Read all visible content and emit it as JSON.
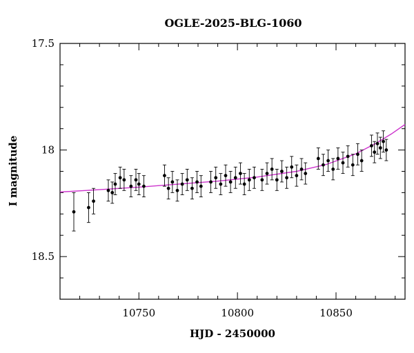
{
  "chart_data": {
    "type": "scatter",
    "title": "OGLE-2025-BLG-1060",
    "xlabel": "HJD - 2450000",
    "ylabel": "I magnitude",
    "xlim": [
      10710,
      10885
    ],
    "ylim": [
      18.7,
      17.5
    ],
    "y_inverted": true,
    "x_ticks": [
      10750,
      10800,
      10850
    ],
    "y_ticks": [
      17.5,
      18,
      18.5
    ],
    "x_tick_labels": [
      "10750",
      "10800",
      "10850"
    ],
    "y_tick_labels": [
      "17.5",
      "18",
      "18.5"
    ],
    "grid": false,
    "colors": {
      "points": "#000000",
      "model": "#cc33cc"
    },
    "series": [
      {
        "type": "scatter_errorbar",
        "x": [
          10717.0,
          10724.5,
          10727.0,
          10734.5,
          10736.5,
          10738.0,
          10740.5,
          10742.5,
          10746.0,
          10748.5,
          10750.0,
          10752.5,
          10763.0,
          10765.0,
          10767.0,
          10769.5,
          10772.0,
          10774.5,
          10777.0,
          10779.5,
          10781.5,
          10786.5,
          10789.0,
          10791.5,
          10794.0,
          10796.5,
          10799.0,
          10801.5,
          10803.5,
          10806.0,
          10808.5,
          10812.5,
          10815.0,
          10817.5,
          10820.0,
          10822.5,
          10825.0,
          10827.5,
          10830.0,
          10832.5,
          10834.5,
          10841.0,
          10843.5,
          10846.0,
          10848.5,
          10851.0,
          10853.5,
          10856.0,
          10858.5,
          10861.0,
          10863.0,
          10868.0,
          10869.5,
          10871.0,
          10872.5,
          10874.0,
          10875.5
        ],
        "y": [
          18.29,
          18.27,
          18.24,
          18.19,
          18.2,
          18.16,
          18.13,
          18.14,
          18.17,
          18.14,
          18.16,
          18.17,
          18.12,
          18.18,
          18.15,
          18.19,
          18.16,
          18.14,
          18.18,
          18.15,
          18.17,
          18.15,
          18.13,
          18.16,
          18.12,
          18.15,
          18.13,
          18.11,
          18.16,
          18.14,
          18.13,
          18.14,
          18.11,
          18.09,
          18.14,
          18.1,
          18.13,
          18.08,
          18.12,
          18.09,
          18.11,
          18.04,
          18.07,
          18.05,
          18.09,
          18.04,
          18.06,
          18.03,
          18.07,
          18.02,
          18.05,
          17.98,
          18.01,
          17.97,
          17.99,
          17.96,
          18.0
        ],
        "yerr": [
          0.09,
          0.07,
          0.06,
          0.05,
          0.05,
          0.05,
          0.05,
          0.05,
          0.05,
          0.05,
          0.05,
          0.05,
          0.05,
          0.05,
          0.05,
          0.05,
          0.05,
          0.05,
          0.05,
          0.05,
          0.05,
          0.05,
          0.05,
          0.05,
          0.05,
          0.05,
          0.05,
          0.05,
          0.05,
          0.05,
          0.05,
          0.05,
          0.05,
          0.05,
          0.05,
          0.05,
          0.05,
          0.05,
          0.05,
          0.05,
          0.05,
          0.05,
          0.05,
          0.05,
          0.05,
          0.05,
          0.05,
          0.05,
          0.05,
          0.05,
          0.05,
          0.05,
          0.05,
          0.05,
          0.05,
          0.05,
          0.05
        ]
      },
      {
        "type": "line",
        "x": [
          10710,
          10730,
          10750,
          10770,
          10790,
          10810,
          10830,
          10845,
          10860,
          10870,
          10878,
          10885
        ],
        "y": [
          18.197,
          18.186,
          18.174,
          18.16,
          18.146,
          18.127,
          18.1,
          18.068,
          18.018,
          17.97,
          17.925,
          17.88
        ]
      }
    ]
  }
}
